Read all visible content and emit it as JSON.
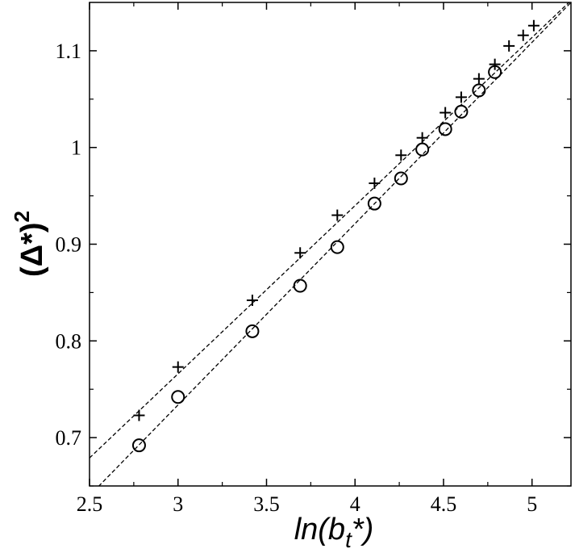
{
  "chart_data": {
    "type": "scatter",
    "xlabel": "ln(b",
    "xlabel_sub": "t",
    "xlabel_tail": "*)",
    "ylabel": "(Δ*)",
    "ylabel_sup": "2",
    "xlim": [
      2.5,
      5.22
    ],
    "ylim": [
      0.65,
      1.15
    ],
    "xticks": [
      "2.5",
      "3",
      "3.5",
      "4",
      "4.5",
      "5"
    ],
    "yticks": [
      "0.7",
      "0.8",
      "0.9",
      "1",
      "1.1"
    ],
    "grid": false,
    "series": [
      {
        "marker": "plus",
        "x": [
          2.78,
          3.0,
          3.42,
          3.69,
          3.9,
          4.11,
          4.26,
          4.38,
          4.51,
          4.6,
          4.7,
          4.79,
          4.87,
          4.95,
          5.01
        ],
        "y": [
          0.723,
          0.773,
          0.842,
          0.891,
          0.93,
          0.963,
          0.992,
          1.01,
          1.036,
          1.052,
          1.071,
          1.086,
          1.105,
          1.116,
          1.126
        ]
      },
      {
        "marker": "circle",
        "x": [
          2.78,
          3.0,
          3.42,
          3.69,
          3.9,
          4.11,
          4.26,
          4.38,
          4.51,
          4.6,
          4.7,
          4.79
        ],
        "y": [
          0.692,
          0.742,
          0.81,
          0.857,
          0.897,
          0.942,
          0.968,
          0.998,
          1.019,
          1.037,
          1.059,
          1.078
        ]
      }
    ],
    "fit_lines": [
      {
        "style": "dashed",
        "x": [
          2.5,
          5.22
        ],
        "y": [
          0.679,
          1.152
        ]
      },
      {
        "style": "dashed",
        "x": [
          2.5,
          5.22
        ],
        "y": [
          0.64,
          1.15
        ]
      }
    ]
  }
}
